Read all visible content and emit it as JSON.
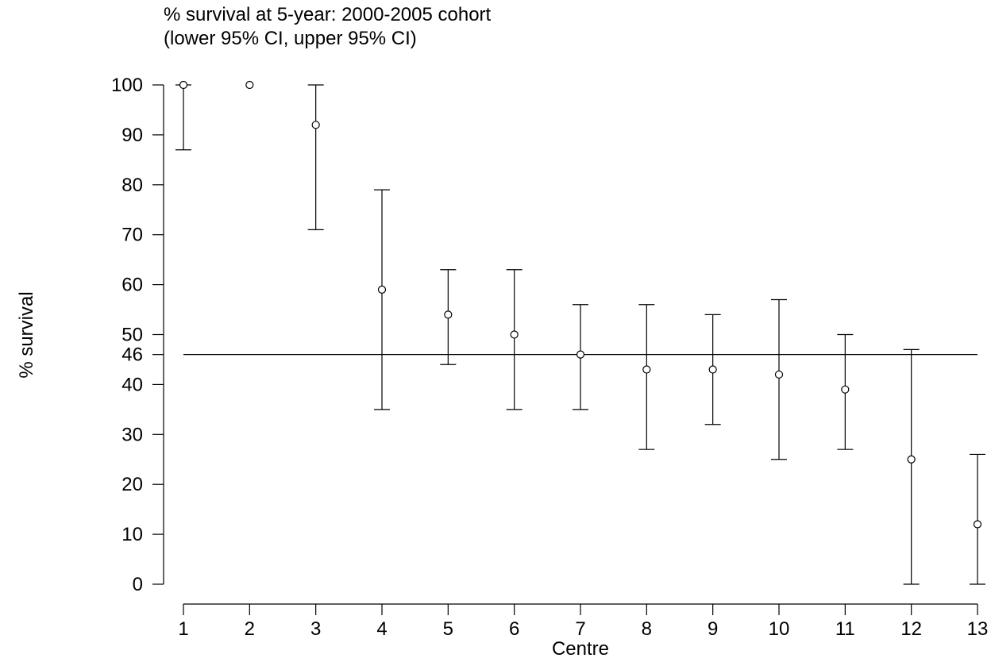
{
  "chart_data": {
    "type": "scatter",
    "title": "% survival at 5-year: 2000-2005 cohort",
    "subtitle": "(lower 95% CI, upper 95% CI)",
    "xlabel": "Centre",
    "ylabel": "% survival",
    "xlim": [
      1,
      13
    ],
    "ylim": [
      0,
      100
    ],
    "x_ticks": [
      "1",
      "2",
      "3",
      "4",
      "5",
      "6",
      "7",
      "8",
      "9",
      "10",
      "11",
      "12",
      "13"
    ],
    "y_ticks": [
      "0",
      "10",
      "20",
      "30",
      "40",
      "46",
      "50",
      "60",
      "70",
      "80",
      "90",
      "100"
    ],
    "reference_line": {
      "y": 46,
      "label": "46"
    },
    "grid": false,
    "legend": "none",
    "points": [
      {
        "x": 1,
        "y": 100,
        "lower": 87,
        "upper": 100
      },
      {
        "x": 2,
        "y": 100,
        "lower": null,
        "upper": null
      },
      {
        "x": 3,
        "y": 92,
        "lower": 71,
        "upper": 100
      },
      {
        "x": 4,
        "y": 59,
        "lower": 35,
        "upper": 79
      },
      {
        "x": 5,
        "y": 54,
        "lower": 44,
        "upper": 63
      },
      {
        "x": 6,
        "y": 50,
        "lower": 35,
        "upper": 63
      },
      {
        "x": 7,
        "y": 46,
        "lower": 35,
        "upper": 56
      },
      {
        "x": 8,
        "y": 43,
        "lower": 27,
        "upper": 56
      },
      {
        "x": 9,
        "y": 43,
        "lower": 32,
        "upper": 54
      },
      {
        "x": 10,
        "y": 42,
        "lower": 25,
        "upper": 57
      },
      {
        "x": 11,
        "y": 39,
        "lower": 27,
        "upper": 50
      },
      {
        "x": 12,
        "y": 25,
        "lower": 0,
        "upper": 47
      },
      {
        "x": 13,
        "y": 12,
        "lower": 0,
        "upper": 26
      }
    ]
  }
}
